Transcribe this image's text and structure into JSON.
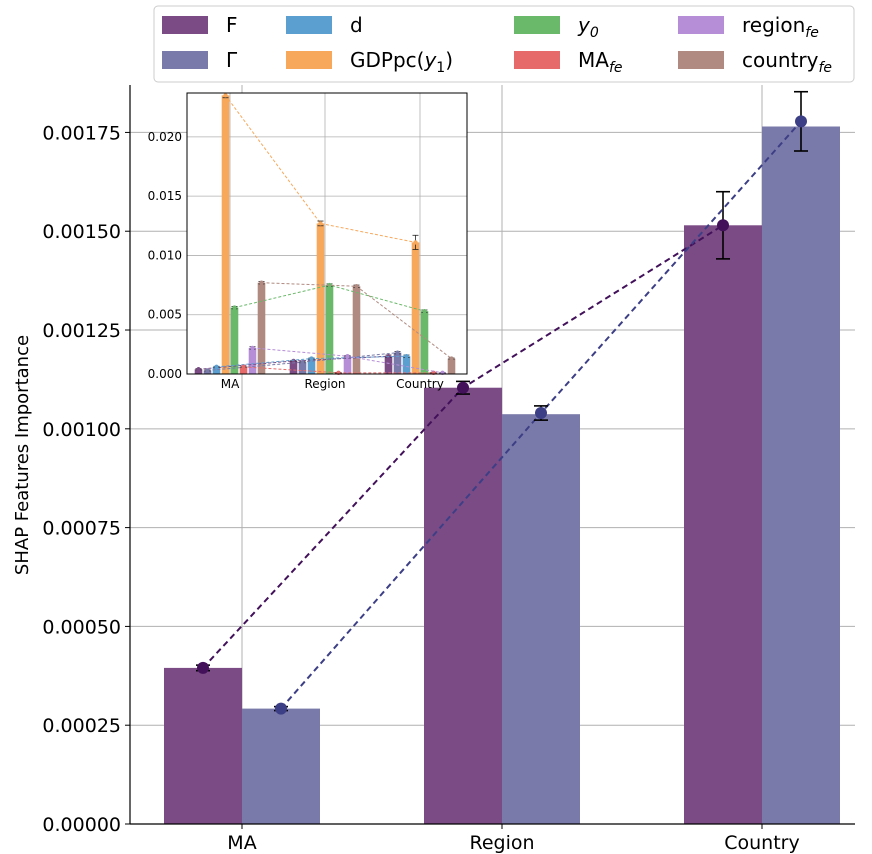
{
  "chart_data": [
    {
      "type": "bar",
      "ylabel": "SHAP Features Importance",
      "categories": [
        "MA",
        "Region",
        "Country"
      ],
      "ylim": [
        0,
        0.00187
      ],
      "yticks": [
        "0.00000",
        "0.00025",
        "0.00050",
        "0.00075",
        "0.00100",
        "0.00125",
        "0.00150",
        "0.00175"
      ],
      "grid": true,
      "series": [
        {
          "name": "F",
          "color": "#7b4b85",
          "line_color": "#42115a",
          "values": [
            0.000395,
            0.001104,
            0.001515
          ],
          "points": [
            0.000395,
            0.001104,
            0.001515
          ],
          "errors": [
            7e-06,
            1.6e-05,
            8.5e-05
          ]
        },
        {
          "name": "Γ",
          "color": "#7a7aaa",
          "line_color": "#3d3f86",
          "values": [
            0.000292,
            0.001037,
            0.001765
          ],
          "points": [
            0.000292,
            0.00104,
            0.001778
          ],
          "errors": [
            5e-06,
            1.8e-05,
            7.5e-05
          ]
        }
      ]
    },
    {
      "type": "bar",
      "categories": [
        "MA",
        "Region",
        "Country"
      ],
      "ylim": [
        0,
        0.0237
      ],
      "yticks": [
        "0.000",
        "0.005",
        "0.010",
        "0.015",
        "0.020"
      ],
      "grid": true,
      "series": [
        {
          "name": "F",
          "color": "#7b4b85",
          "values": [
            0.0004,
            0.0011,
            0.0015
          ],
          "errors": [
            5e-05,
            5e-05,
            0.0001
          ]
        },
        {
          "name": "Γ",
          "color": "#7a7aaa",
          "values": [
            0.0003,
            0.001,
            0.0018
          ],
          "errors": [
            5e-05,
            5e-05,
            0.0001
          ]
        },
        {
          "name": "d",
          "color": "#5a9fd0",
          "values": [
            0.0006,
            0.0013,
            0.0015
          ],
          "errors": [
            5e-05,
            5e-05,
            0.0001
          ]
        },
        {
          "name": "GDPpc(y₁)",
          "color": "#f8a85b",
          "values": [
            0.0235,
            0.0127,
            0.0111
          ],
          "errors": [
            0.0002,
            0.0002,
            0.0006
          ]
        },
        {
          "name": "y₀",
          "color": "#6ab96a",
          "values": [
            0.0056,
            0.0075,
            0.0053
          ],
          "errors": [
            0.0001,
            0.0001,
            0.0001
          ]
        },
        {
          "name": "MA_fe",
          "color": "#e66a6a",
          "values": [
            0.0006,
            0.0001,
            0.0001
          ],
          "errors": [
            5e-05,
            2e-05,
            2e-05
          ]
        },
        {
          "name": "region_fe",
          "color": "#b68ed7",
          "values": [
            0.0022,
            0.0015,
            0.0001
          ],
          "errors": [
            0.0001,
            5e-05,
            2e-05
          ]
        },
        {
          "name": "country_fe",
          "color": "#b08a80",
          "values": [
            0.0077,
            0.0074,
            0.0013
          ],
          "errors": [
            0.0001,
            0.0001,
            5e-05
          ]
        }
      ]
    }
  ],
  "legend": {
    "placement": "top",
    "entries": [
      {
        "label": "F",
        "sub": "",
        "italic": false,
        "color": "#7b4b85"
      },
      {
        "label": "Γ",
        "sub": "",
        "italic": false,
        "color": "#7a7aaa"
      },
      {
        "label": "d",
        "sub": "",
        "italic": false,
        "color": "#5a9fd0"
      },
      {
        "label": "GDPpc(y",
        "sub": "1",
        "tail": ")",
        "italic": false,
        "color": "#f8a85b"
      },
      {
        "label": "y",
        "sub": "0",
        "italic": true,
        "color": "#6ab96a"
      },
      {
        "label": "MA",
        "sub": "fe",
        "italic": false,
        "color": "#e66a6a"
      },
      {
        "label": "region",
        "sub": "fe",
        "italic": false,
        "color": "#b68ed7"
      },
      {
        "label": "country",
        "sub": "fe",
        "italic": false,
        "color": "#b08a80"
      }
    ]
  }
}
